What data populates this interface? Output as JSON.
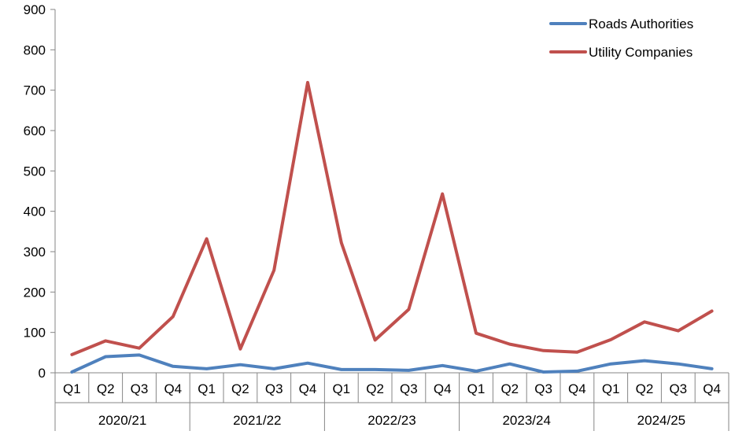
{
  "chart_data": {
    "type": "line",
    "categories": [
      "Q1",
      "Q2",
      "Q3",
      "Q4",
      "Q1",
      "Q2",
      "Q3",
      "Q4",
      "Q1",
      "Q2",
      "Q3",
      "Q4",
      "Q1",
      "Q2",
      "Q3",
      "Q4",
      "Q1",
      "Q2",
      "Q3",
      "Q4"
    ],
    "groups": [
      "2020/21",
      "2021/22",
      "2022/23",
      "2023/24",
      "2024/25"
    ],
    "series": [
      {
        "name": "Roads Authorities",
        "color": "#4F81BD",
        "values": [
          2,
          40,
          44,
          16,
          10,
          20,
          10,
          24,
          8,
          8,
          6,
          18,
          4,
          22,
          2,
          4,
          22,
          30,
          22,
          10
        ]
      },
      {
        "name": "Utility Companies",
        "color": "#C0504D",
        "values": [
          45,
          79,
          61,
          139,
          332,
          59,
          254,
          719,
          322,
          81,
          157,
          443,
          98,
          71,
          55,
          51,
          82,
          126,
          104,
          153
        ]
      }
    ],
    "ylim": [
      0,
      900
    ],
    "yticks": [
      0,
      100,
      200,
      300,
      400,
      500,
      600,
      700,
      800,
      900
    ],
    "legend_position": "top-right",
    "grid": false
  }
}
